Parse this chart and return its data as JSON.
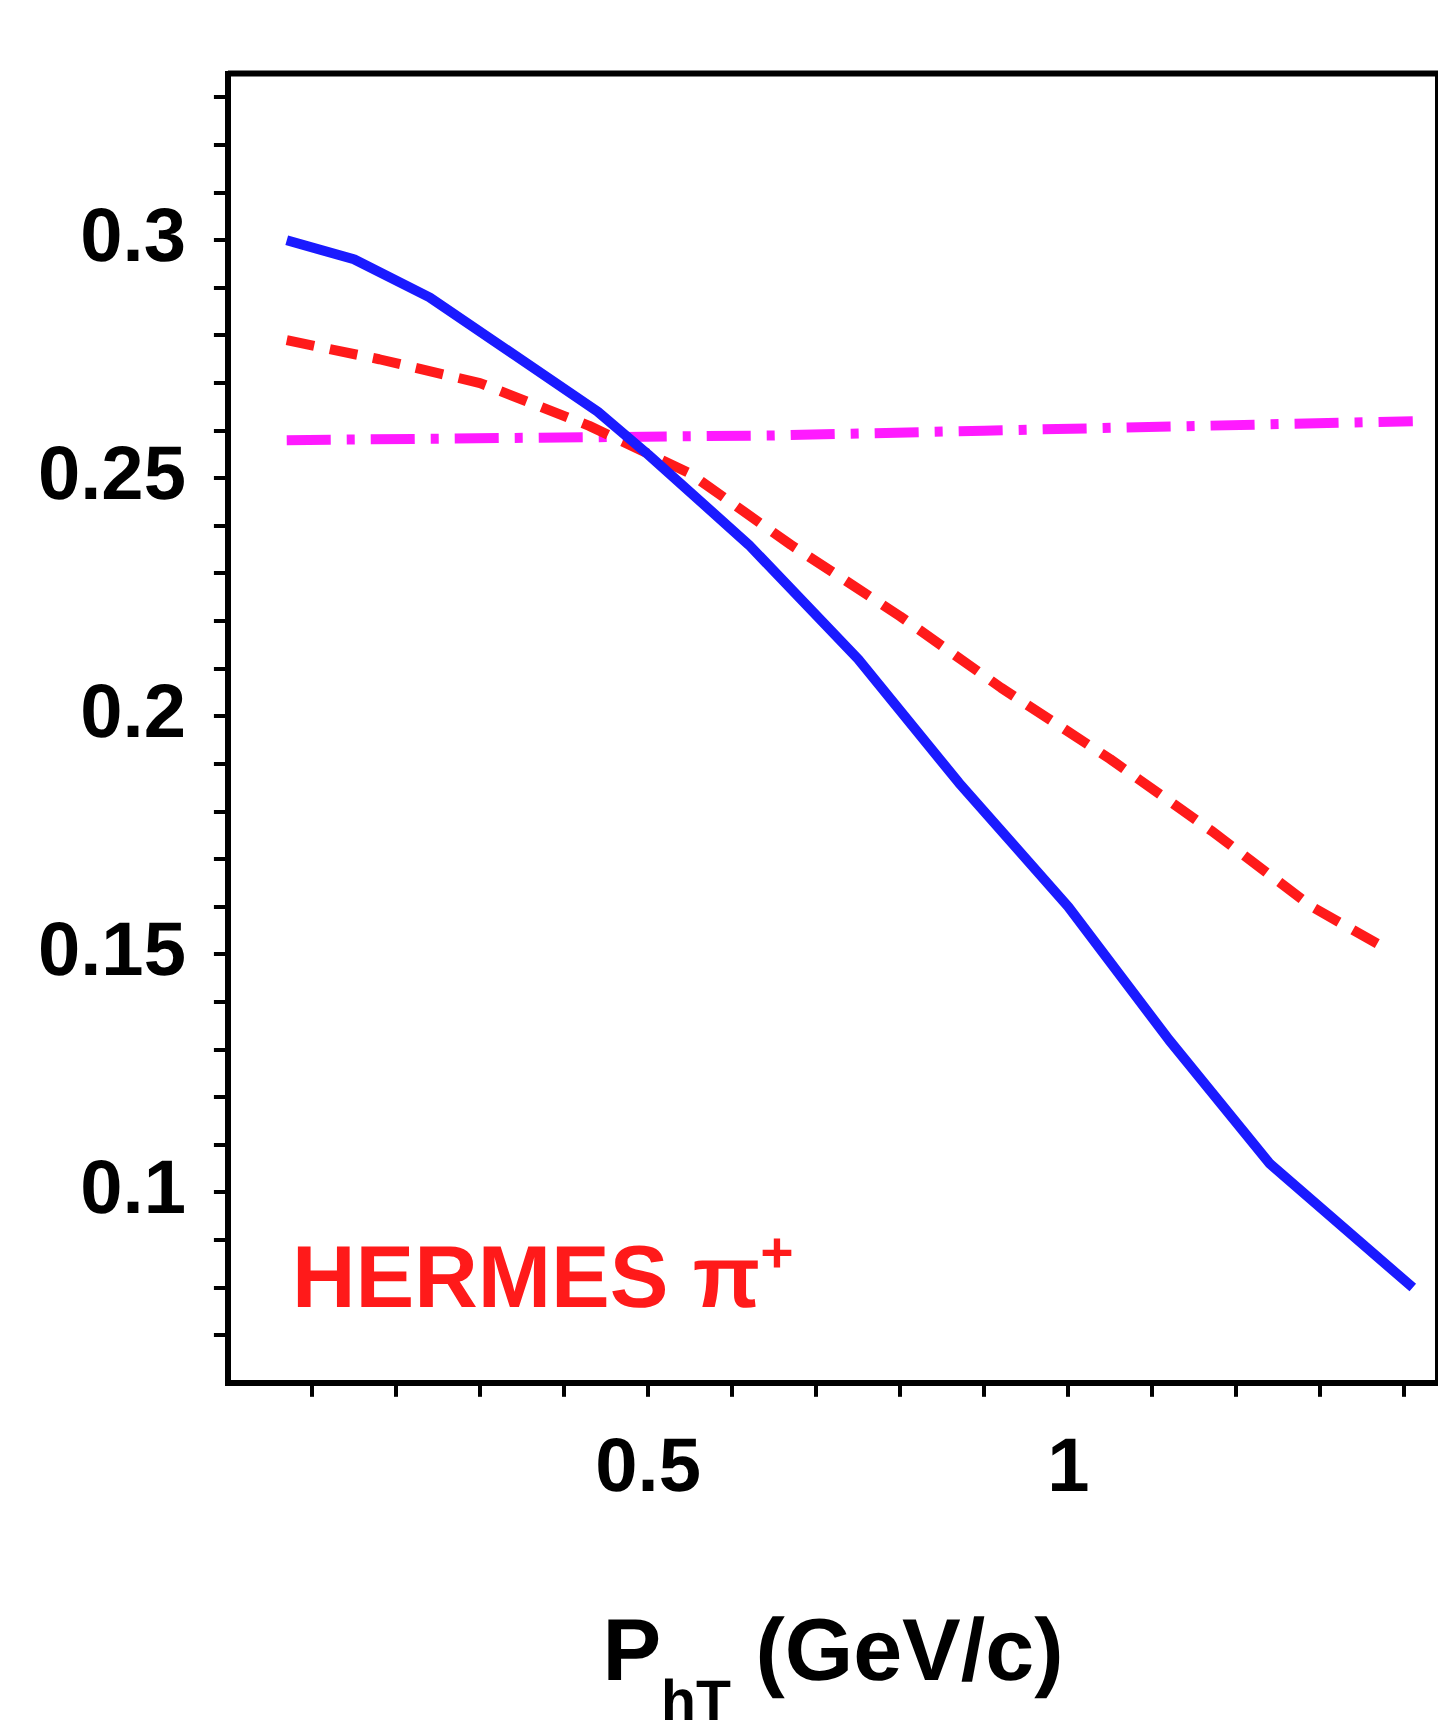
{
  "chart_data": {
    "type": "line",
    "xlabel": "P$_{hT}$ (GeV/c)",
    "annotations": [
      "HERMES π$^{+}$"
    ],
    "xlim": [
      0,
      1.44
    ],
    "ylim": [
      0.06,
      0.335
    ],
    "xticks": [
      {
        "value": 0.1,
        "label": null
      },
      {
        "value": 0.2,
        "label": null
      },
      {
        "value": 0.3,
        "label": null
      },
      {
        "value": 0.4,
        "label": null
      },
      0.5,
      {
        "value": 0.6,
        "label": null
      },
      {
        "value": 0.7,
        "label": null
      },
      {
        "value": 0.8,
        "label": null
      },
      {
        "value": 0.9,
        "label": null
      },
      1,
      {
        "value": 1.1,
        "label": null
      },
      {
        "value": 1.2,
        "label": null
      },
      {
        "value": 1.3,
        "label": null
      },
      {
        "value": 1.4,
        "label": null
      }
    ],
    "yticks": [
      {
        "value": 0.07,
        "label": null
      },
      {
        "value": 0.08,
        "label": null
      },
      {
        "value": 0.09,
        "label": null
      },
      0.1,
      {
        "value": 0.11,
        "label": null
      },
      {
        "value": 0.12,
        "label": null
      },
      {
        "value": 0.13,
        "label": null
      },
      {
        "value": 0.14,
        "label": null
      },
      0.15,
      {
        "value": 0.16,
        "label": null
      },
      {
        "value": 0.17,
        "label": null
      },
      {
        "value": 0.18,
        "label": null
      },
      {
        "value": 0.19,
        "label": null
      },
      0.2,
      {
        "value": 0.21,
        "label": null
      },
      {
        "value": 0.22,
        "label": null
      },
      {
        "value": 0.23,
        "label": null
      },
      {
        "value": 0.24,
        "label": null
      },
      0.25,
      {
        "value": 0.26,
        "label": null
      },
      {
        "value": 0.27,
        "label": null
      },
      {
        "value": 0.28,
        "label": null
      },
      {
        "value": 0.29,
        "label": null
      },
      0.3,
      {
        "value": 0.31,
        "label": null
      },
      {
        "value": 0.32,
        "label": null
      },
      {
        "value": 0.33,
        "label": null
      }
    ],
    "series": [
      {
        "color": "#1a1aff",
        "line_style": "solid",
        "x": [
          0.07,
          0.15,
          0.24,
          0.34,
          0.44,
          0.5,
          0.62,
          0.75,
          0.87,
          1.0,
          1.12,
          1.24,
          1.41
        ],
        "values": [
          0.3,
          0.296,
          0.288,
          0.276,
          0.264,
          0.255,
          0.236,
          0.212,
          0.186,
          0.16,
          0.132,
          0.106,
          0.08
        ]
      },
      {
        "color": "#ff1a1a",
        "line_style": "dashed",
        "x": [
          0.07,
          0.18,
          0.3,
          0.43,
          0.55,
          0.67,
          0.8,
          0.92,
          1.05,
          1.17,
          1.29,
          1.38
        ],
        "values": [
          0.279,
          0.275,
          0.27,
          0.261,
          0.251,
          0.236,
          0.221,
          0.206,
          0.191,
          0.176,
          0.16,
          0.151
        ]
      },
      {
        "color": "#ff1aff",
        "line_style": "dashdot",
        "x": [
          0.07,
          0.65,
          0.9,
          1.41
        ],
        "values": [
          0.258,
          0.259,
          0.26,
          0.262
        ]
      }
    ]
  }
}
